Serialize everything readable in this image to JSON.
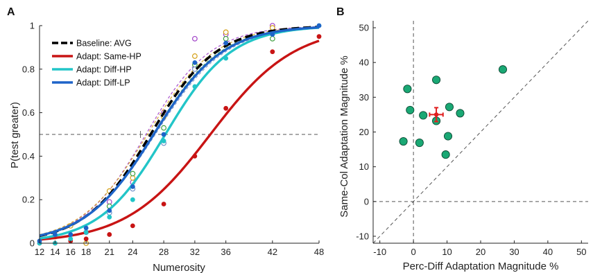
{
  "chart_data": [
    {
      "panel_label": "A",
      "type": "line",
      "xlabel": "Numerosity",
      "ylabel": "P(test greater)",
      "xlim": [
        12,
        48
      ],
      "ylim": [
        0,
        1
      ],
      "xticks": [
        12,
        14,
        16,
        18,
        21,
        24,
        28,
        32,
        36,
        42,
        48
      ],
      "yticks": [
        0,
        0.2,
        0.4,
        0.6,
        0.8,
        1
      ],
      "reference_line_y": 0.5,
      "pse_marker_x": 25,
      "grid": false,
      "legend_position": "top-left",
      "series": [
        {
          "name": "Baseline: AVG",
          "color": "#000000",
          "style": "dashed",
          "pse": 26.3,
          "slope": 0.235,
          "x": [
            12,
            14,
            16,
            18,
            21,
            24,
            28,
            32,
            36,
            42,
            48
          ],
          "y": [
            0.01,
            0.03,
            0.04,
            0.07,
            0.16,
            0.27,
            0.55,
            0.83,
            0.93,
            0.97,
            1.0
          ]
        },
        {
          "name": "Adapt: Same-HP",
          "color": "#c81414",
          "style": "solid",
          "pse": 34.0,
          "slope": 0.185,
          "x": [
            12,
            14,
            16,
            18,
            21,
            24,
            28,
            32,
            36,
            42,
            48
          ],
          "y": [
            0.0,
            0.0,
            0.01,
            0.02,
            0.04,
            0.08,
            0.18,
            0.4,
            0.62,
            0.88,
            0.95
          ]
        },
        {
          "name": "Adapt: Diff-HP",
          "color": "#22c5c8",
          "style": "solid",
          "pse": 28.2,
          "slope": 0.235,
          "x": [
            12,
            14,
            16,
            18,
            21,
            24,
            28,
            32,
            36,
            42,
            48
          ],
          "y": [
            0.0,
            0.0,
            0.02,
            0.05,
            0.12,
            0.2,
            0.47,
            0.72,
            0.85,
            0.96,
            1.0
          ]
        },
        {
          "name": "Adapt: Diff-LP",
          "color": "#1e64c8",
          "style": "solid",
          "pse": 26.7,
          "slope": 0.225,
          "x": [
            12,
            14,
            16,
            18,
            21,
            24,
            28,
            32,
            36,
            42,
            48
          ],
          "y": [
            0.01,
            0.04,
            0.04,
            0.07,
            0.15,
            0.26,
            0.5,
            0.83,
            0.92,
            0.96,
            1.0
          ]
        }
      ],
      "individual_series": [
        {
          "color": "#a040c8",
          "pse": 25.7,
          "slope": 0.24,
          "x": [
            21,
            24,
            28,
            32,
            36,
            42
          ],
          "y": [
            0.19,
            0.28,
            0.6,
            0.94,
            0.96,
            1.0
          ]
        },
        {
          "color": "#d4a017",
          "pse": 25.9,
          "slope": 0.23,
          "x": [
            14,
            16,
            18,
            21,
            24,
            28,
            32,
            36,
            42
          ],
          "y": [
            0.03,
            0.08,
            0.0,
            0.24,
            0.3,
            0.58,
            0.86,
            0.97,
            0.99
          ]
        },
        {
          "color": "#40a040",
          "pse": 26.6,
          "slope": 0.23,
          "x": [
            21,
            24,
            28,
            32,
            36,
            42
          ],
          "y": [
            0.17,
            0.32,
            0.53,
            0.82,
            0.94,
            0.94
          ]
        },
        {
          "color": "#7090c8",
          "pse": 26.9,
          "slope": 0.22,
          "x": [
            18,
            21,
            24,
            28,
            32
          ],
          "y": [
            0.05,
            0.14,
            0.25,
            0.46,
            0.8
          ]
        }
      ]
    },
    {
      "panel_label": "B",
      "type": "scatter",
      "xlabel": "Perc-Diff Adaptation Magnitude %",
      "ylabel": "Same-Col Adaptation Magnitude %",
      "xlim": [
        -12,
        52
      ],
      "ylim": [
        -12,
        52
      ],
      "xticks": [
        -10,
        0,
        10,
        20,
        30,
        40,
        50
      ],
      "yticks": [
        -10,
        0,
        10,
        20,
        30,
        40,
        50
      ],
      "reference_lines": {
        "x": 0,
        "y": 0,
        "identity": true
      },
      "grid": false,
      "point_color": "#1aa874",
      "points": [
        {
          "x": -3.0,
          "y": 17.3
        },
        {
          "x": -1.0,
          "y": 26.3
        },
        {
          "x": 1.8,
          "y": 16.9
        },
        {
          "x": 2.9,
          "y": 24.8
        },
        {
          "x": -1.8,
          "y": 32.4
        },
        {
          "x": 6.8,
          "y": 35.0
        },
        {
          "x": 6.8,
          "y": 23.2
        },
        {
          "x": 9.6,
          "y": 13.5
        },
        {
          "x": 10.3,
          "y": 18.8
        },
        {
          "x": 10.7,
          "y": 27.2
        },
        {
          "x": 13.9,
          "y": 25.4
        },
        {
          "x": 26.6,
          "y": 38.0
        }
      ],
      "mean": {
        "x": 6.8,
        "y": 25.0,
        "x_err": 2.0,
        "y_err": 2.0,
        "color": "#e01e1e"
      }
    }
  ]
}
